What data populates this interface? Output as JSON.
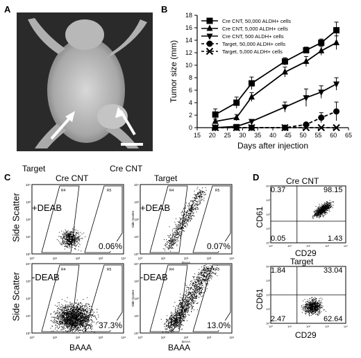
{
  "panelA": {
    "label": "A",
    "target": "Target",
    "cre": "Cre CNT"
  },
  "panelB": {
    "label": "B"
  },
  "panelC": {
    "label": "C",
    "col_cre": "Cre CNT",
    "col_target": "Target",
    "plus": "+DEAB",
    "minus": "-DEAB",
    "ylabel": "Side Scatter",
    "xlabel": "BAAA",
    "small_y": "Side Scatter",
    "small_x": "BAAA",
    "r4": "R4",
    "r5": "R5",
    "pct": [
      "0.06%",
      "0.07%",
      "37.3%",
      "13.0%"
    ]
  },
  "panelD": {
    "label": "D",
    "top_title": "Cre CNT",
    "bot_title": "Target",
    "ylabel": "CD61",
    "xlabel": "CD29",
    "top_q": [
      "0.37",
      "98.15",
      "0.05",
      "1.43"
    ],
    "bot_q": [
      "1.84",
      "33.04",
      "2.47",
      "62.64"
    ]
  },
  "flow_ticks": [
    "10⁰",
    "10¹",
    "10²",
    "10³",
    "10⁴"
  ],
  "chart_data": {
    "type": "line",
    "xlabel": "Days after injection",
    "ylabel": "Tumor size (mm)",
    "xlim": [
      15,
      65
    ],
    "ylim": [
      0,
      18
    ],
    "xticks": [
      15,
      20,
      25,
      30,
      35,
      40,
      45,
      50,
      55,
      60,
      65
    ],
    "yticks": [
      0,
      2,
      4,
      6,
      8,
      10,
      12,
      14,
      16,
      18
    ],
    "legend_position": "top-left",
    "series": [
      {
        "name": "Cre CNT, 50,000 ALDH+ cells",
        "marker": "square",
        "dashed": false,
        "x": [
          21,
          28,
          33,
          44,
          51,
          56,
          61
        ],
        "y": [
          2.1,
          4.0,
          7.1,
          10.6,
          12.4,
          13.6,
          15.6
        ],
        "err": [
          0.9,
          0.9,
          1.0,
          0.6,
          0.5,
          0.6,
          1.3
        ]
      },
      {
        "name": "Cre CNT, 5,000 ALDH+ cells",
        "marker": "triangle",
        "dashed": false,
        "x": [
          21,
          28,
          33,
          44,
          51,
          56,
          61
        ],
        "y": [
          1.0,
          1.6,
          4.9,
          8.9,
          10.6,
          12.3,
          13.6
        ],
        "err": [
          0.4,
          0.5,
          0.7,
          0.8,
          0.8,
          0.7,
          1.1
        ]
      },
      {
        "name": "Cre CNT, 500 ALDH+ cells",
        "marker": "triangle-down",
        "dashed": false,
        "x": [
          21,
          28,
          33,
          44,
          51,
          56,
          61
        ],
        "y": [
          0,
          0.2,
          1.0,
          3.3,
          4.8,
          5.7,
          7.0
        ],
        "err": [
          0,
          0.2,
          0.3,
          0.8,
          1.4,
          1.0,
          1.0
        ]
      },
      {
        "name": "Target, 50,000 ALDH+ cells",
        "marker": "circle",
        "dashed": true,
        "x": [
          21,
          28,
          33,
          44,
          51,
          56,
          61
        ],
        "y": [
          0,
          0,
          0,
          0,
          0.5,
          1.6,
          2.6
        ],
        "err": [
          0,
          0,
          0,
          0,
          0.3,
          0.8,
          1.5
        ]
      },
      {
        "name": "Target, 5,000 ALDH+ cells",
        "marker": "x",
        "dashed": true,
        "x": [
          21,
          28,
          33,
          44,
          51,
          56,
          61
        ],
        "y": [
          0,
          0,
          0,
          0,
          0,
          0,
          0
        ],
        "err": [
          0,
          0,
          0,
          0,
          0,
          0,
          0
        ]
      }
    ]
  }
}
